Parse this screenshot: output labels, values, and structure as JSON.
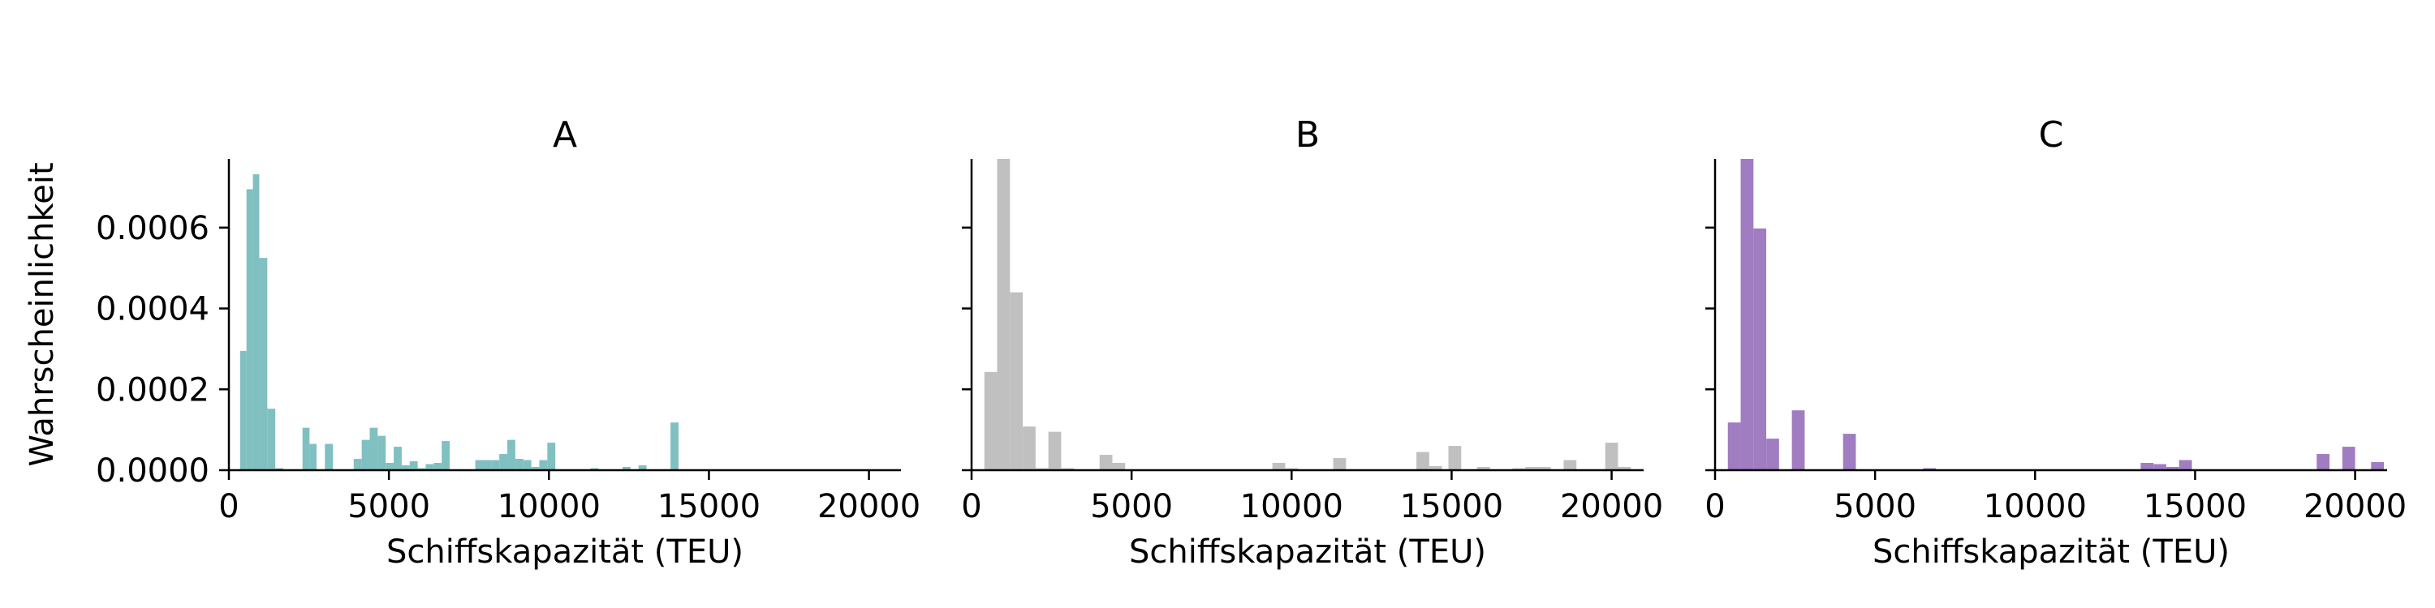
{
  "chart_data": [
    {
      "type": "bar",
      "title": "A",
      "xlabel": "Schiffskapazität (TEU)",
      "ylabel": "Wahrscheinlichkeit",
      "xlim": [
        0,
        21000
      ],
      "ylim": [
        0,
        0.00077
      ],
      "xticks": [
        "0",
        "5000",
        "10000",
        "15000",
        "20000"
      ],
      "yticks": [
        "0.0000",
        "0.0002",
        "0.0004",
        "0.0006"
      ],
      "color": "#80c0c0",
      "bins": [
        {
          "x0": 350,
          "x1": 550,
          "y": 0.000295
        },
        {
          "x0": 550,
          "x1": 750,
          "y": 0.000695
        },
        {
          "x0": 750,
          "x1": 950,
          "y": 0.000732
        },
        {
          "x0": 950,
          "x1": 1200,
          "y": 0.000525
        },
        {
          "x0": 1200,
          "x1": 1450,
          "y": 0.000152
        },
        {
          "x0": 1450,
          "x1": 1700,
          "y": 5e-06
        },
        {
          "x0": 2300,
          "x1": 2520,
          "y": 0.000105
        },
        {
          "x0": 2520,
          "x1": 2740,
          "y": 6.5e-05
        },
        {
          "x0": 3000,
          "x1": 3250,
          "y": 6.5e-05
        },
        {
          "x0": 3900,
          "x1": 4150,
          "y": 2.8e-05
        },
        {
          "x0": 4150,
          "x1": 4400,
          "y": 7.5e-05
        },
        {
          "x0": 4400,
          "x1": 4650,
          "y": 0.000105
        },
        {
          "x0": 4650,
          "x1": 4900,
          "y": 8.5e-05
        },
        {
          "x0": 4900,
          "x1": 5150,
          "y": 1.8e-05
        },
        {
          "x0": 5150,
          "x1": 5400,
          "y": 5.8e-05
        },
        {
          "x0": 5400,
          "x1": 5650,
          "y": 1.2e-05
        },
        {
          "x0": 5650,
          "x1": 5900,
          "y": 2.2e-05
        },
        {
          "x0": 5900,
          "x1": 6150,
          "y": 5e-06
        },
        {
          "x0": 6150,
          "x1": 6400,
          "y": 1.5e-05
        },
        {
          "x0": 6400,
          "x1": 6650,
          "y": 1.8e-05
        },
        {
          "x0": 6650,
          "x1": 6900,
          "y": 7.2e-05
        },
        {
          "x0": 7700,
          "x1": 7950,
          "y": 2.5e-05
        },
        {
          "x0": 7950,
          "x1": 8200,
          "y": 2.5e-05
        },
        {
          "x0": 8200,
          "x1": 8450,
          "y": 2.5e-05
        },
        {
          "x0": 8450,
          "x1": 8700,
          "y": 4e-05
        },
        {
          "x0": 8700,
          "x1": 8950,
          "y": 7.5e-05
        },
        {
          "x0": 8950,
          "x1": 9200,
          "y": 2.8e-05
        },
        {
          "x0": 9200,
          "x1": 9450,
          "y": 2.5e-05
        },
        {
          "x0": 9450,
          "x1": 9700,
          "y": 8e-06
        },
        {
          "x0": 9700,
          "x1": 9950,
          "y": 2.5e-05
        },
        {
          "x0": 9950,
          "x1": 10200,
          "y": 6.8e-05
        },
        {
          "x0": 11300,
          "x1": 11550,
          "y": 5e-06
        },
        {
          "x0": 12300,
          "x1": 12550,
          "y": 8e-06
        },
        {
          "x0": 12800,
          "x1": 13050,
          "y": 1.2e-05
        },
        {
          "x0": 13800,
          "x1": 14050,
          "y": 0.000118
        }
      ]
    },
    {
      "type": "bar",
      "title": "B",
      "xlabel": "Schiffskapazität (TEU)",
      "ylabel": "",
      "xlim": [
        0,
        21000
      ],
      "ylim": [
        0,
        0.00077
      ],
      "xticks": [
        "0",
        "5000",
        "10000",
        "15000",
        "20000"
      ],
      "yticks": [
        "",
        "",
        "",
        ""
      ],
      "color": "#c0c0c0",
      "bins": [
        {
          "x0": 400,
          "x1": 800,
          "y": 0.000243
        },
        {
          "x0": 800,
          "x1": 1200,
          "y": 0.00077
        },
        {
          "x0": 1200,
          "x1": 1600,
          "y": 0.00044
        },
        {
          "x0": 1600,
          "x1": 2000,
          "y": 0.000108
        },
        {
          "x0": 2000,
          "x1": 2400,
          "y": 5e-06
        },
        {
          "x0": 2400,
          "x1": 2800,
          "y": 9.5e-05
        },
        {
          "x0": 2800,
          "x1": 3200,
          "y": 5e-06
        },
        {
          "x0": 4000,
          "x1": 4400,
          "y": 3.8e-05
        },
        {
          "x0": 4400,
          "x1": 4800,
          "y": 1.8e-05
        },
        {
          "x0": 9400,
          "x1": 9800,
          "y": 1.8e-05
        },
        {
          "x0": 9800,
          "x1": 10200,
          "y": 5e-06
        },
        {
          "x0": 11300,
          "x1": 11700,
          "y": 3e-05
        },
        {
          "x0": 13900,
          "x1": 14300,
          "y": 4.5e-05
        },
        {
          "x0": 14300,
          "x1": 14700,
          "y": 1e-05
        },
        {
          "x0": 14900,
          "x1": 15300,
          "y": 6e-05
        },
        {
          "x0": 15800,
          "x1": 16200,
          "y": 8e-06
        },
        {
          "x0": 16900,
          "x1": 17300,
          "y": 5e-06
        },
        {
          "x0": 17300,
          "x1": 17700,
          "y": 8e-06
        },
        {
          "x0": 17700,
          "x1": 18100,
          "y": 8e-06
        },
        {
          "x0": 18500,
          "x1": 18900,
          "y": 2.5e-05
        },
        {
          "x0": 19800,
          "x1": 20200,
          "y": 6.8e-05
        },
        {
          "x0": 20200,
          "x1": 20600,
          "y": 8e-06
        }
      ]
    },
    {
      "type": "bar",
      "title": "C",
      "xlabel": "Schiffskapazität (TEU)",
      "ylabel": "",
      "xlim": [
        0,
        21000
      ],
      "ylim": [
        0,
        0.00077
      ],
      "xticks": [
        "0",
        "5000",
        "10000",
        "15000",
        "20000"
      ],
      "yticks": [
        "",
        "",
        "",
        ""
      ],
      "color": "#a07cc0",
      "bins": [
        {
          "x0": 400,
          "x1": 800,
          "y": 0.000118
        },
        {
          "x0": 800,
          "x1": 1200,
          "y": 0.00077
        },
        {
          "x0": 1200,
          "x1": 1600,
          "y": 0.000598
        },
        {
          "x0": 1600,
          "x1": 2000,
          "y": 7.8e-05
        },
        {
          "x0": 2400,
          "x1": 2800,
          "y": 0.000148
        },
        {
          "x0": 4000,
          "x1": 4400,
          "y": 9e-05
        },
        {
          "x0": 6500,
          "x1": 6900,
          "y": 5e-06
        },
        {
          "x0": 13300,
          "x1": 13700,
          "y": 1.8e-05
        },
        {
          "x0": 13700,
          "x1": 14100,
          "y": 1.5e-05
        },
        {
          "x0": 14100,
          "x1": 14500,
          "y": 8e-06
        },
        {
          "x0": 14500,
          "x1": 14900,
          "y": 2.5e-05
        },
        {
          "x0": 18800,
          "x1": 19200,
          "y": 4e-05
        },
        {
          "x0": 19600,
          "x1": 20000,
          "y": 5.8e-05
        },
        {
          "x0": 20500,
          "x1": 20900,
          "y": 2e-05
        }
      ]
    }
  ]
}
